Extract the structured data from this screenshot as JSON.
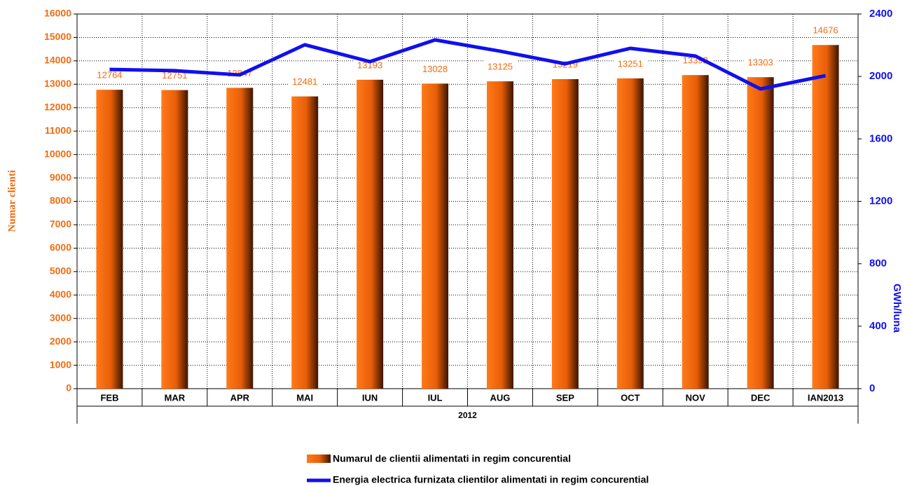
{
  "chart_data": {
    "type": "bar",
    "categories": [
      "FEB",
      "MAR",
      "APR",
      "MAI",
      "IUN",
      "IUL",
      "AUG",
      "SEP",
      "OCT",
      "NOV",
      "DEC",
      "IAN2013"
    ],
    "group_label": "2012",
    "y_label": "Numar clienti",
    "y2_label": "GWh/luna",
    "series": [
      {
        "name": "Numarul de clientii alimentati in regim concurential",
        "type": "bar",
        "color": "#f26b0f",
        "values": [
          12764,
          12751,
          12847,
          12481,
          13193,
          13028,
          13125,
          13219,
          13251,
          13392,
          13303,
          14676
        ]
      },
      {
        "name": "Energia electrica furnizata clientilor alimentati in regim concurential",
        "type": "line",
        "axis": "y2",
        "color": "#1010ee",
        "values": [
          2045,
          2037,
          2010,
          2203,
          2095,
          2234,
          2162,
          2081,
          2180,
          2131,
          1920,
          2005
        ]
      }
    ],
    "ylim": [
      0,
      16000
    ],
    "yticks": [
      0,
      1000,
      2000,
      3000,
      4000,
      5000,
      6000,
      7000,
      8000,
      9000,
      10000,
      11000,
      12000,
      13000,
      14000,
      15000,
      16000
    ],
    "y2lim": [
      0,
      2400
    ],
    "y2ticks": [
      0,
      400,
      800,
      1200,
      1600,
      2000,
      2400
    ],
    "grid": true
  }
}
